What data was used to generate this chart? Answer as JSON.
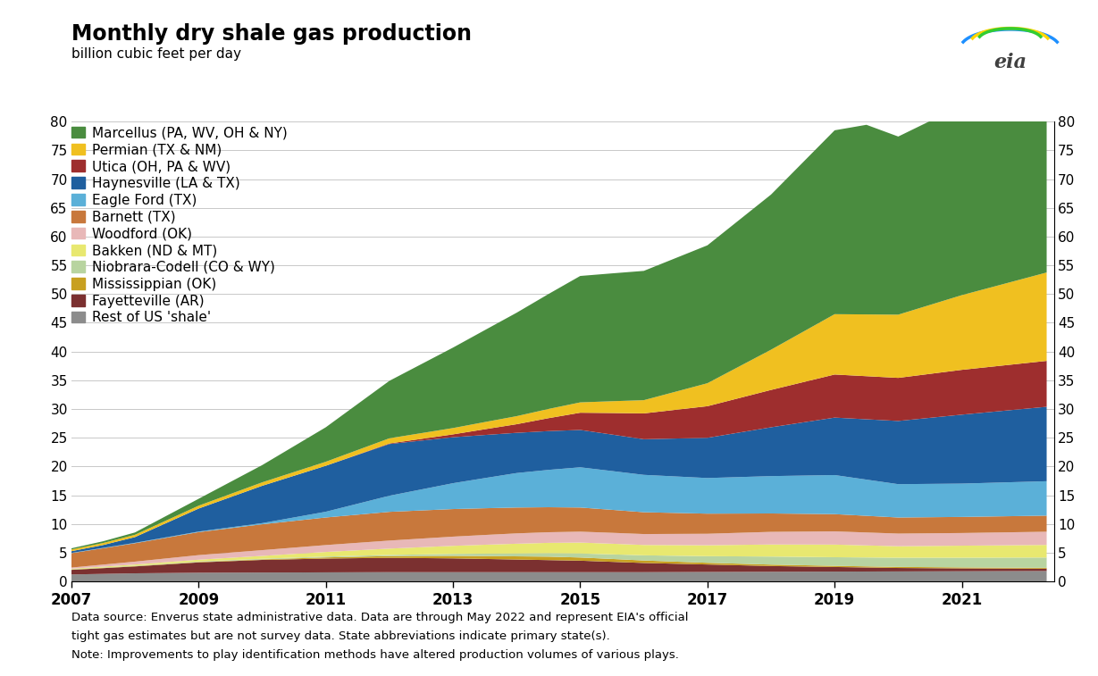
{
  "title": "Monthly dry shale gas production",
  "ylabel": "billion cubic feet per day",
  "note1": "Data source: Enverus state administrative data. Data are through May 2022 and represent EIA's official",
  "note2": "tight gas estimates but are not survey data. State abbreviations indicate primary state(s).",
  "note3": "Note: Improvements to play identification methods have altered production volumes of various plays.",
  "series_order": [
    "Rest of US 'shale'",
    "Fayetteville (AR)",
    "Mississippian (OK)",
    "Niobrara-Codell (CO & WY)",
    "Bakken (ND & MT)",
    "Woodford (OK)",
    "Barnett (TX)",
    "Eagle Ford (TX)",
    "Haynesville (LA & TX)",
    "Utica (OH, PA & WV)",
    "Permian (TX & NM)",
    "Marcellus (PA, WV, OH & NY)"
  ],
  "legend_order": [
    "Marcellus (PA, WV, OH & NY)",
    "Permian (TX & NM)",
    "Utica (OH, PA & WV)",
    "Haynesville (LA & TX)",
    "Eagle Ford (TX)",
    "Barnett (TX)",
    "Woodford (OK)",
    "Bakken (ND & MT)",
    "Niobrara-Codell (CO & WY)",
    "Mississippian (OK)",
    "Fayetteville (AR)",
    "Rest of US 'shale'"
  ],
  "colors": {
    "Rest of US 'shale'": "#8c8c8c",
    "Fayetteville (AR)": "#7b3030",
    "Mississippian (OK)": "#c8a020",
    "Niobrara-Codell (CO & WY)": "#b8d4a0",
    "Bakken (ND & MT)": "#e8e870",
    "Woodford (OK)": "#e8b8b8",
    "Barnett (TX)": "#c8783c",
    "Eagle Ford (TX)": "#5bb0d8",
    "Haynesville (LA & TX)": "#1f5f9f",
    "Utica (OH, PA & WV)": "#9e2e2e",
    "Permian (TX & NM)": "#f0c020",
    "Marcellus (PA, WV, OH & NY)": "#4a8c3f"
  },
  "xlim": [
    2007.0,
    2022.45
  ],
  "ylim": [
    0,
    80
  ],
  "yticks": [
    0,
    5,
    10,
    15,
    20,
    25,
    30,
    35,
    40,
    45,
    50,
    55,
    60,
    65,
    70,
    75,
    80
  ],
  "xticks": [
    2007,
    2009,
    2011,
    2013,
    2015,
    2017,
    2019,
    2021
  ],
  "background_color": "#ffffff"
}
